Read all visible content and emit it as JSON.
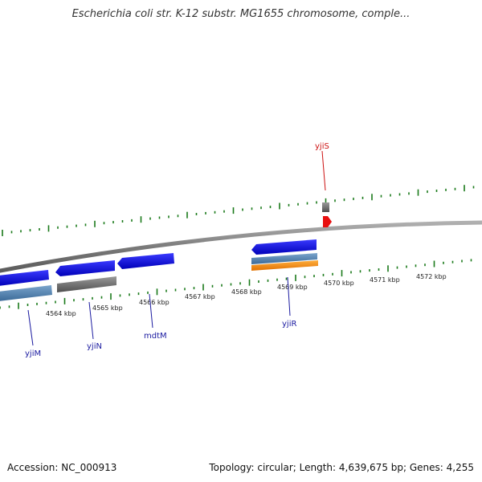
{
  "title": "Escherichia coli str. K-12 substr. MG1655 chromosome, comple...",
  "footer": {
    "accession": "Accession: NC_000913",
    "summary": "Topology: circular; Length: 4,639,675 bp; Genes: 4,255"
  },
  "colors": {
    "backbone": "#8a8a8a",
    "cds_blue": "#1010e8",
    "steel_blue": "#4f7fb0",
    "grey_feature": "#6c6c6c",
    "orange": "#f08a16",
    "red": "#e81010",
    "tick_green": "#1a7a1a",
    "label_blue": "#1a1aa0",
    "label_red": "#cc1010"
  },
  "kbp_labels": [
    "4564 kbp",
    "4565 kbp",
    "4566 kbp",
    "4567 kbp",
    "4568 kbp",
    "4569 kbp",
    "4570 kbp",
    "4571 kbp",
    "4572 kbp"
  ],
  "genes": [
    {
      "name": "yjiM",
      "color": "label_blue"
    },
    {
      "name": "yjiN",
      "color": "label_blue"
    },
    {
      "name": "mdtM",
      "color": "label_blue"
    },
    {
      "name": "yjiR",
      "color": "label_blue"
    },
    {
      "name": "yjiS",
      "color": "label_red"
    }
  ]
}
